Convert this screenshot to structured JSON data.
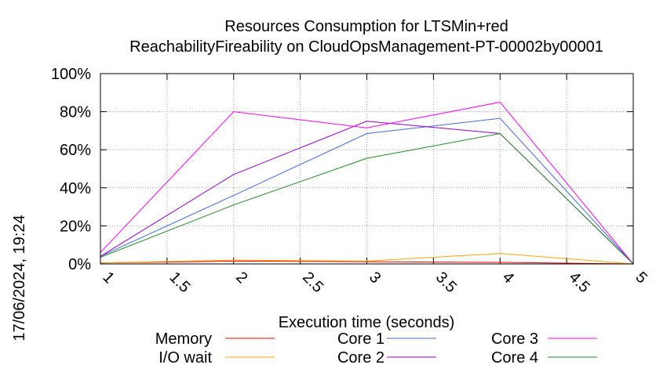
{
  "chart_data": {
    "type": "line",
    "title_line1": "Resources Consumption for LTSMin+red",
    "title_line2": "ReachabilityFireability on CloudOpsManagement-PT-00002by00001",
    "xlabel": "Execution time (seconds)",
    "ylabel": "",
    "timestamp": "17/06/2024, 19:24",
    "xlim": [
      1,
      5
    ],
    "ylim": [
      0,
      100
    ],
    "x_ticks": [
      {
        "value": 1,
        "label": "1"
      },
      {
        "value": 1.5,
        "label": "1.5"
      },
      {
        "value": 2,
        "label": "2"
      },
      {
        "value": 2.5,
        "label": "2.5"
      },
      {
        "value": 3,
        "label": "3"
      },
      {
        "value": 3.5,
        "label": "3.5"
      },
      {
        "value": 4,
        "label": "4"
      },
      {
        "value": 4.5,
        "label": "4.5"
      },
      {
        "value": 5,
        "label": "5"
      }
    ],
    "y_ticks": [
      {
        "value": 0,
        "label": "0%"
      },
      {
        "value": 20,
        "label": "20%"
      },
      {
        "value": 40,
        "label": "40%"
      },
      {
        "value": 60,
        "label": "60%"
      },
      {
        "value": 80,
        "label": "80%"
      },
      {
        "value": 100,
        "label": "100%"
      }
    ],
    "grid": true,
    "legend_position": "bottom",
    "x": [
      1,
      2,
      3,
      4,
      5
    ],
    "series": [
      {
        "name": "Memory",
        "color": "#ff0000",
        "values": [
          0.5,
          1.5,
          1.2,
          0.8,
          0
        ]
      },
      {
        "name": "I/O wait",
        "color": "#ffa500",
        "values": [
          0.5,
          2.0,
          1.5,
          5.5,
          0
        ]
      },
      {
        "name": "Core 1",
        "color": "#4169e1",
        "values": [
          4,
          36,
          68.5,
          76.5,
          0
        ]
      },
      {
        "name": "Core 2",
        "color": "#9400d3",
        "values": [
          4,
          47,
          75,
          68.5,
          0
        ]
      },
      {
        "name": "Core 3",
        "color": "#ff00ff",
        "values": [
          6,
          80,
          71.5,
          85,
          0
        ]
      },
      {
        "name": "Core 4",
        "color": "#228b22",
        "values": [
          3.5,
          31,
          55.5,
          68.5,
          0
        ]
      }
    ]
  }
}
